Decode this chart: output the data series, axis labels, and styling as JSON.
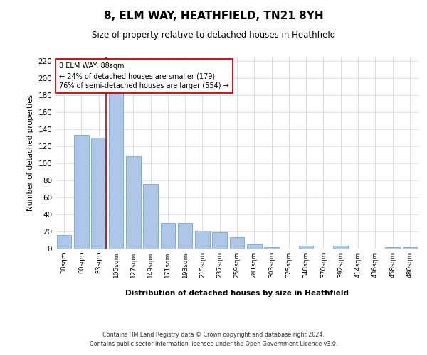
{
  "title": "8, ELM WAY, HEATHFIELD, TN21 8YH",
  "subtitle": "Size of property relative to detached houses in Heathfield",
  "xlabel": "Distribution of detached houses by size in Heathfield",
  "ylabel": "Number of detached properties",
  "categories": [
    "38sqm",
    "60sqm",
    "83sqm",
    "105sqm",
    "127sqm",
    "149sqm",
    "171sqm",
    "193sqm",
    "215sqm",
    "237sqm",
    "259sqm",
    "281sqm",
    "303sqm",
    "325sqm",
    "348sqm",
    "370sqm",
    "392sqm",
    "414sqm",
    "436sqm",
    "458sqm",
    "480sqm"
  ],
  "values": [
    16,
    133,
    130,
    184,
    108,
    76,
    30,
    30,
    21,
    19,
    13,
    5,
    2,
    0,
    3,
    0,
    3,
    0,
    0,
    2,
    2
  ],
  "bar_color": "#aec6e8",
  "bar_edge_color": "#5a9fd4",
  "grid_color": "#d0d0d0",
  "vline_color": "#cc0000",
  "annotation_text": "8 ELM WAY: 88sqm\n← 24% of detached houses are smaller (179)\n76% of semi-detached houses are larger (554) →",
  "annotation_box_color": "#ffffff",
  "annotation_box_edge_color": "#cc0000",
  "ylim": [
    0,
    225
  ],
  "yticks": [
    0,
    20,
    40,
    60,
    80,
    100,
    120,
    140,
    160,
    180,
    200,
    220
  ],
  "footer_line1": "Contains HM Land Registry data © Crown copyright and database right 2024.",
  "footer_line2": "Contains public sector information licensed under the Open Government Licence v3.0."
}
